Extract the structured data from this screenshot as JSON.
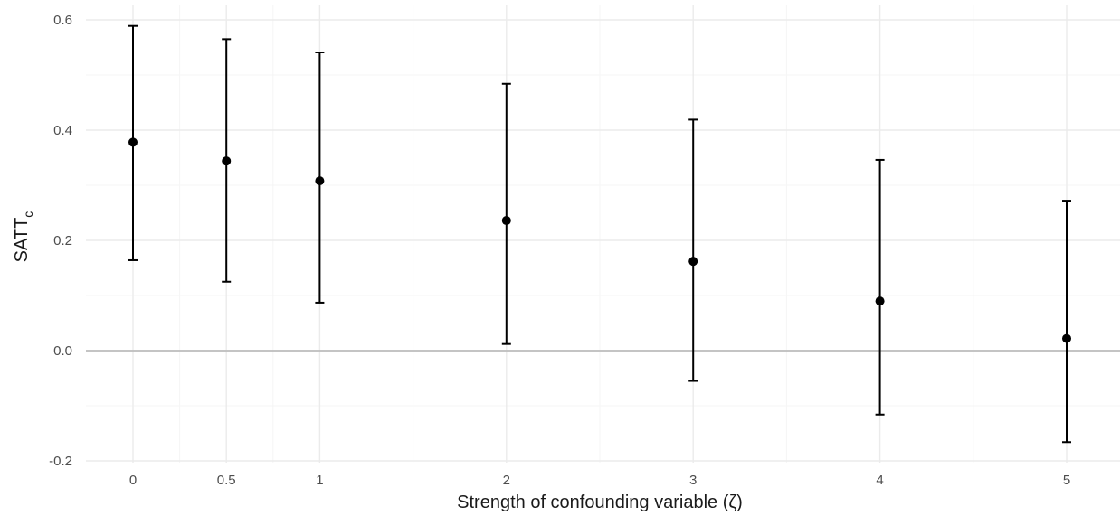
{
  "chart_data": {
    "type": "errorbar",
    "xlabel": "Strength of confounding variable (ζ)",
    "ylabel_main": "SATT",
    "ylabel_sub": "c",
    "xlim": [
      -0.25,
      5.25
    ],
    "ylim": [
      -0.2,
      0.6
    ],
    "x_ticks": [
      0,
      0.5,
      1,
      2,
      3,
      4,
      5
    ],
    "x_tick_labels": [
      "0",
      "0.5",
      "1",
      "2",
      "3",
      "4",
      "5"
    ],
    "y_ticks": [
      -0.2,
      0.0,
      0.2,
      0.4,
      0.6
    ],
    "y_tick_labels": [
      "-0.2",
      "0.0",
      "0.2",
      "0.4",
      "0.6"
    ],
    "grid": true,
    "reference_line_y": 0,
    "points": [
      {
        "x": 0,
        "estimate": 0.378,
        "lower": 0.164,
        "upper": 0.589
      },
      {
        "x": 0.5,
        "estimate": 0.344,
        "lower": 0.125,
        "upper": 0.565
      },
      {
        "x": 1,
        "estimate": 0.308,
        "lower": 0.087,
        "upper": 0.541
      },
      {
        "x": 2,
        "estimate": 0.236,
        "lower": 0.012,
        "upper": 0.484
      },
      {
        "x": 3,
        "estimate": 0.162,
        "lower": -0.055,
        "upper": 0.419
      },
      {
        "x": 4,
        "estimate": 0.09,
        "lower": -0.116,
        "upper": 0.346
      },
      {
        "x": 5,
        "estimate": 0.022,
        "lower": -0.166,
        "upper": 0.272
      }
    ],
    "colors": {
      "grid_major": "#ebebeb",
      "grid_minor": "#f5f5f5",
      "reference_line": "#bdbdbd",
      "marks": "#000000"
    }
  }
}
